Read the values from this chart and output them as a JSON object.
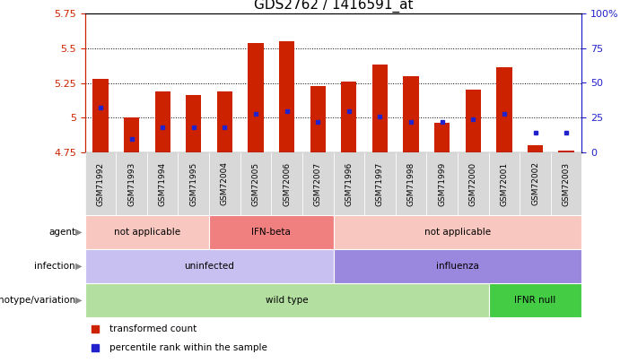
{
  "title": "GDS2762 / 1416591_at",
  "samples": [
    "GSM71992",
    "GSM71993",
    "GSM71994",
    "GSM71995",
    "GSM72004",
    "GSM72005",
    "GSM72006",
    "GSM72007",
    "GSM71996",
    "GSM71997",
    "GSM71998",
    "GSM71999",
    "GSM72000",
    "GSM72001",
    "GSM72002",
    "GSM72003"
  ],
  "transformed_count": [
    5.28,
    5.0,
    5.19,
    5.16,
    5.19,
    5.54,
    5.55,
    5.23,
    5.26,
    5.38,
    5.3,
    4.96,
    5.2,
    5.36,
    4.8,
    4.76
  ],
  "percentile_rank": [
    32,
    10,
    18,
    18,
    18,
    28,
    30,
    22,
    30,
    26,
    22,
    22,
    24,
    28,
    14,
    14
  ],
  "ylim_left": [
    4.75,
    5.75
  ],
  "ylim_right": [
    0,
    100
  ],
  "yticks_left": [
    4.75,
    5.0,
    5.25,
    5.5,
    5.75
  ],
  "yticks_right": [
    0,
    25,
    50,
    75,
    100
  ],
  "ytick_labels_left": [
    "4.75",
    "5",
    "5.25",
    "5.5",
    "5.75"
  ],
  "ytick_labels_right": [
    "0",
    "25",
    "50",
    "75",
    "100%"
  ],
  "bar_color": "#cc2200",
  "dot_color": "#2222cc",
  "base_value": 4.75,
  "bar_width": 0.5,
  "annotation_rows": [
    {
      "label": "genotype/variation",
      "segments": [
        {
          "text": "wild type",
          "start": 0,
          "end": 13,
          "color": "#b3e0a0"
        },
        {
          "text": "IFNR null",
          "start": 13,
          "end": 16,
          "color": "#44cc44"
        }
      ]
    },
    {
      "label": "infection",
      "segments": [
        {
          "text": "uninfected",
          "start": 0,
          "end": 8,
          "color": "#c8c0f0"
        },
        {
          "text": "influenza",
          "start": 8,
          "end": 16,
          "color": "#9988dd"
        }
      ]
    },
    {
      "label": "agent",
      "segments": [
        {
          "text": "not applicable",
          "start": 0,
          "end": 4,
          "color": "#f8c8c0"
        },
        {
          "text": "IFN-beta",
          "start": 4,
          "end": 8,
          "color": "#f08080"
        },
        {
          "text": "not applicable",
          "start": 8,
          "end": 16,
          "color": "#f8c8c0"
        }
      ]
    }
  ],
  "legend": [
    {
      "label": "transformed count",
      "color": "#cc2200"
    },
    {
      "label": "percentile rank within the sample",
      "color": "#2222cc"
    }
  ],
  "title_color": "#000000",
  "left_axis_color": "#cc2200",
  "right_axis_color": "#2222cc",
  "chart_bg": "#ffffff",
  "xtick_bg": "#d8d8d8"
}
